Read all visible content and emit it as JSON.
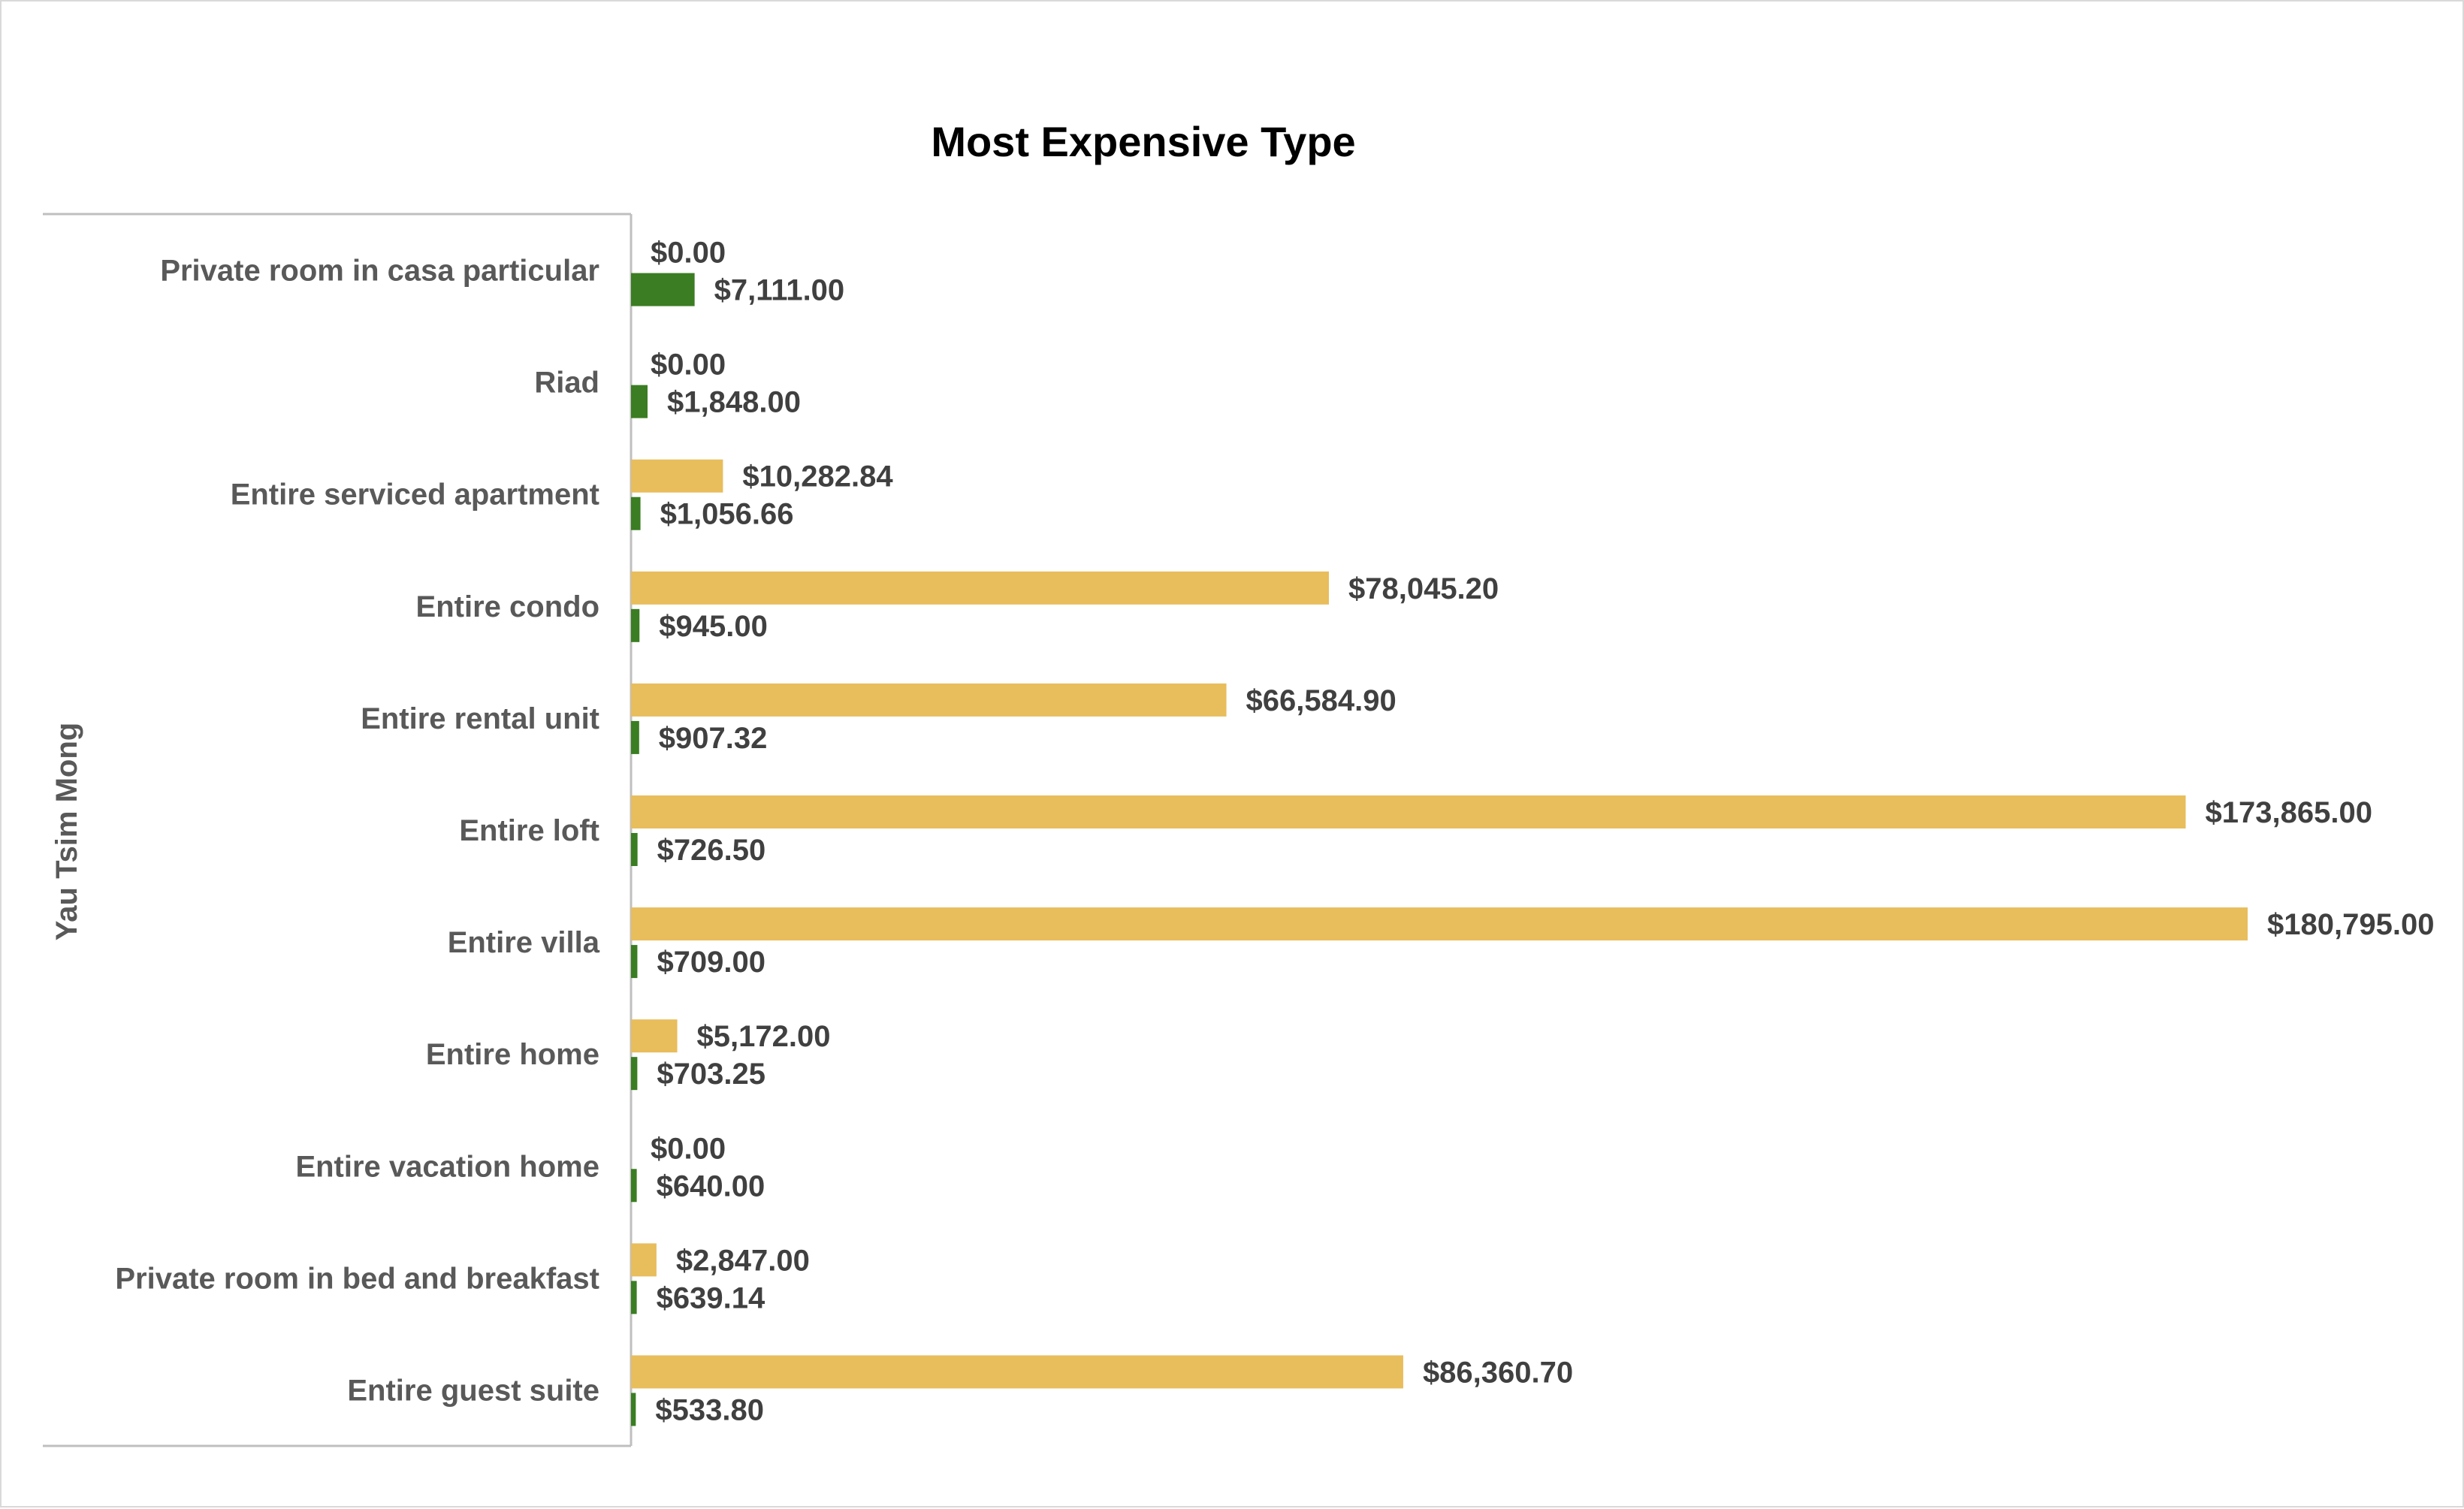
{
  "chart_data": {
    "type": "bar",
    "orientation": "horizontal",
    "title": "Most Expensive Type",
    "group_label": "Yau Tsim Mong",
    "categories": [
      "Private room in casa particular",
      "Riad",
      "Entire serviced apartment",
      "Entire condo",
      "Entire rental unit",
      "Entire loft",
      "Entire villa",
      "Entire home",
      "Entire vacation home",
      "Private room in bed and breakfast",
      "Entire guest suite"
    ],
    "series": [
      {
        "color": "#e8bd5c",
        "values": [
          0,
          0,
          10282.84,
          78045.2,
          66584.9,
          173865.0,
          180795.0,
          5172.0,
          0,
          2847.0,
          86360.7
        ],
        "labels": [
          "$0.00",
          "$0.00",
          "$10,282.84",
          "$78,045.20",
          "$66,584.90",
          "$173,865.00",
          "$180,795.00",
          "$5,172.00",
          "$0.00",
          "$2,847.00",
          "$86,360.70"
        ]
      },
      {
        "color": "#3a7d22",
        "values": [
          7111.0,
          1848.0,
          1056.66,
          945.0,
          907.32,
          726.5,
          709.0,
          703.25,
          640.0,
          639.14,
          533.8
        ],
        "labels": [
          "$7,111.00",
          "$1,848.00",
          "$1,056.66",
          "$945.00",
          "$907.32",
          "$726.50",
          "$709.00",
          "$703.25",
          "$640.00",
          "$639.14",
          "$533.80"
        ]
      }
    ],
    "xlim": [
      0,
      180795
    ],
    "gridlines": false,
    "legend": "none",
    "data_labels": true
  }
}
